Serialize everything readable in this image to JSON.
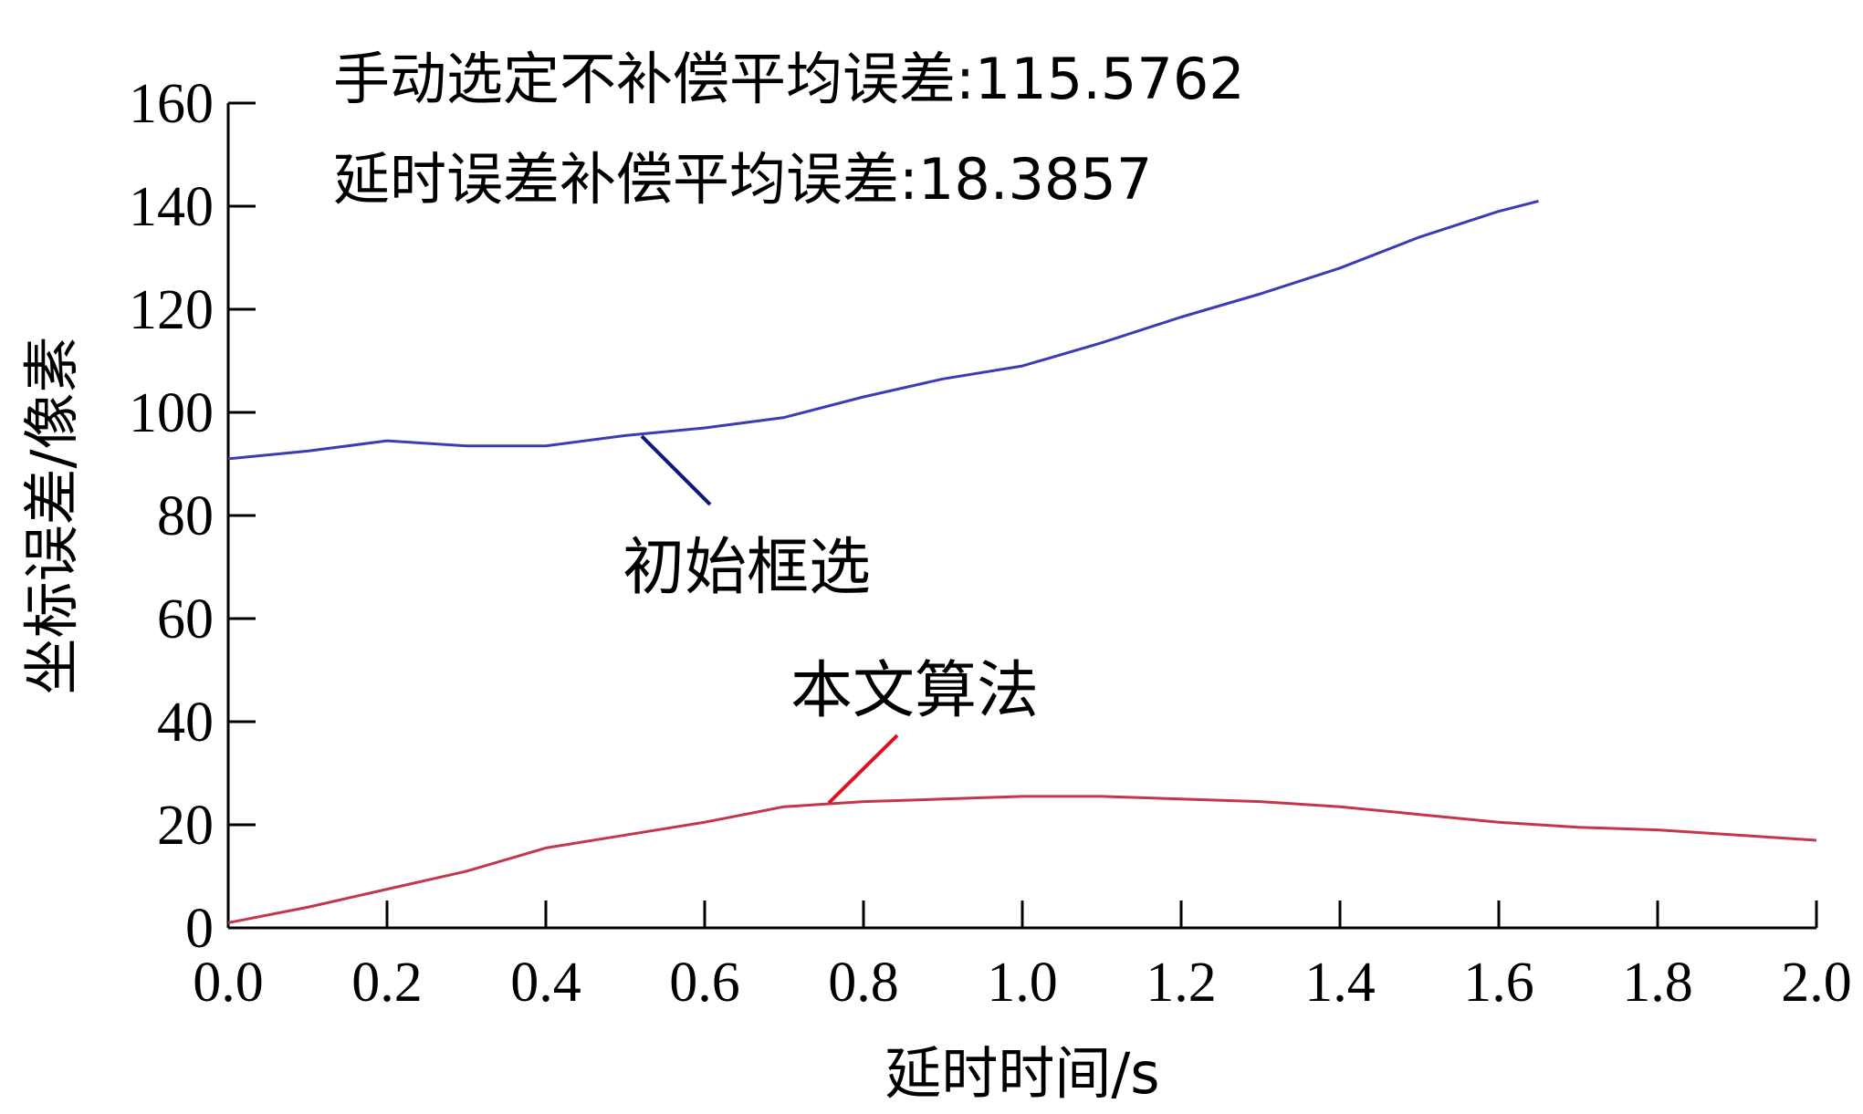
{
  "chart_data": {
    "type": "line",
    "title": "",
    "xlabel": "延时时间/s",
    "ylabel": "坐标误差/像素",
    "xlim": [
      0,
      2.0
    ],
    "ylim": [
      0,
      160
    ],
    "xticks": [
      "0.0",
      "0.2",
      "0.4",
      "0.6",
      "0.8",
      "1.0",
      "1.2",
      "1.4",
      "1.6",
      "1.8",
      "2.0"
    ],
    "yticks": [
      "0",
      "20",
      "40",
      "60",
      "80",
      "100",
      "120",
      "140",
      "160"
    ],
    "grid": false,
    "annotations": [
      "手动选定不补偿平均误差:115.5762",
      "延时误差补偿平均误差:18.3857"
    ],
    "series": [
      {
        "name": "初始框选",
        "color": "#3b3bb8",
        "x": [
          0.0,
          0.1,
          0.2,
          0.3,
          0.4,
          0.5,
          0.6,
          0.7,
          0.8,
          0.9,
          1.0,
          1.1,
          1.2,
          1.3,
          1.4,
          1.5,
          1.6,
          1.65
        ],
        "y": [
          91,
          92.5,
          94.5,
          93.5,
          93.5,
          95.5,
          97,
          99,
          103,
          106.5,
          109,
          113.5,
          118.5,
          123,
          128,
          134,
          139,
          141
        ]
      },
      {
        "name": "本文算法",
        "color": "#c4364a",
        "x": [
          0.0,
          0.1,
          0.2,
          0.3,
          0.4,
          0.5,
          0.6,
          0.7,
          0.8,
          0.9,
          1.0,
          1.1,
          1.2,
          1.3,
          1.4,
          1.5,
          1.6,
          1.7,
          1.8,
          1.9,
          2.0
        ],
        "y": [
          1,
          4,
          7.5,
          11,
          15.5,
          18,
          20.5,
          23.5,
          24.5,
          25,
          25.5,
          25.5,
          25,
          24.5,
          23.5,
          22,
          20.5,
          19.5,
          19,
          18,
          17
        ]
      }
    ],
    "label_pointers": [
      "#0b1a7a",
      "#e0101e"
    ]
  }
}
